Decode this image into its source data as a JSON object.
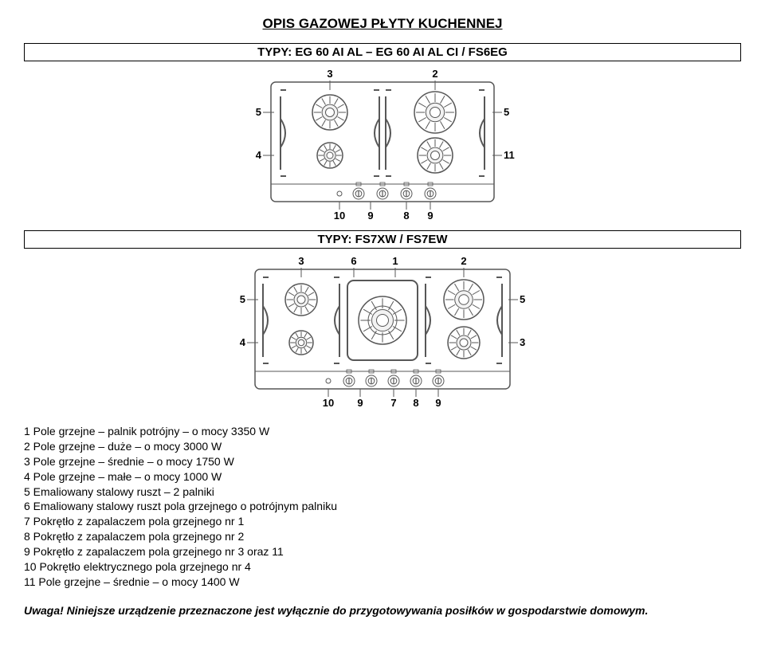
{
  "title": "OPIS GAZOWEJ PŁYTY KUCHENNEJ",
  "section1": {
    "subtitle": "TYPY: EG 60 AI AL – EG 60 AI AL CI / FS6EG"
  },
  "section2": {
    "subtitle": "TYPY: FS7XW / FS7EW"
  },
  "diagram1": {
    "labels_top": [
      "3",
      "2"
    ],
    "labels_left": [
      "5",
      "4"
    ],
    "labels_right": [
      "5",
      "11"
    ],
    "labels_bottom": [
      "10",
      "9",
      "8",
      "9"
    ],
    "knob_count": 4,
    "stroke": "#575757",
    "fill": "#f2f2f2",
    "bg": "#ffffff"
  },
  "diagram2": {
    "labels_top": [
      "3",
      "6",
      "1",
      "2"
    ],
    "labels_left": [
      "5",
      "4"
    ],
    "labels_right": [
      "5",
      "3"
    ],
    "labels_bottom": [
      "10",
      "9",
      "7",
      "8",
      "9"
    ],
    "knob_count": 5,
    "stroke": "#575757",
    "fill": "#f2f2f2",
    "bg": "#ffffff"
  },
  "legend": {
    "items": [
      "1 Pole grzejne – palnik potrójny – o mocy 3350 W",
      "2 Pole grzejne – duże – o mocy 3000 W",
      "3 Pole grzejne – średnie – o mocy 1750 W",
      "4 Pole grzejne – małe – o mocy 1000 W",
      "5 Emaliowany stalowy ruszt – 2 palniki",
      "6 Emaliowany stalowy ruszt pola grzejnego o potrójnym palniku",
      "7 Pokrętło z zapalaczem pola grzejnego nr 1",
      "8 Pokrętło z zapalaczem pola grzejnego nr 2",
      "9 Pokrętło z zapalaczem pola grzejnego nr 3 oraz 11",
      "10 Pokrętło elektrycznego pola grzejnego nr 4",
      "11 Pole grzejne – średnie – o mocy 1400 W"
    ]
  },
  "warning": {
    "prefix": "Uwaga!",
    "text": " Niniejsze urządzenie przeznaczone jest wyłącznie do przygotowywania posiłków w gospodarstwie domowym."
  },
  "style": {
    "title_fontsize": 17,
    "subtitle_fontsize": 15,
    "body_fontsize": 14,
    "stroke_width": 1.2
  }
}
